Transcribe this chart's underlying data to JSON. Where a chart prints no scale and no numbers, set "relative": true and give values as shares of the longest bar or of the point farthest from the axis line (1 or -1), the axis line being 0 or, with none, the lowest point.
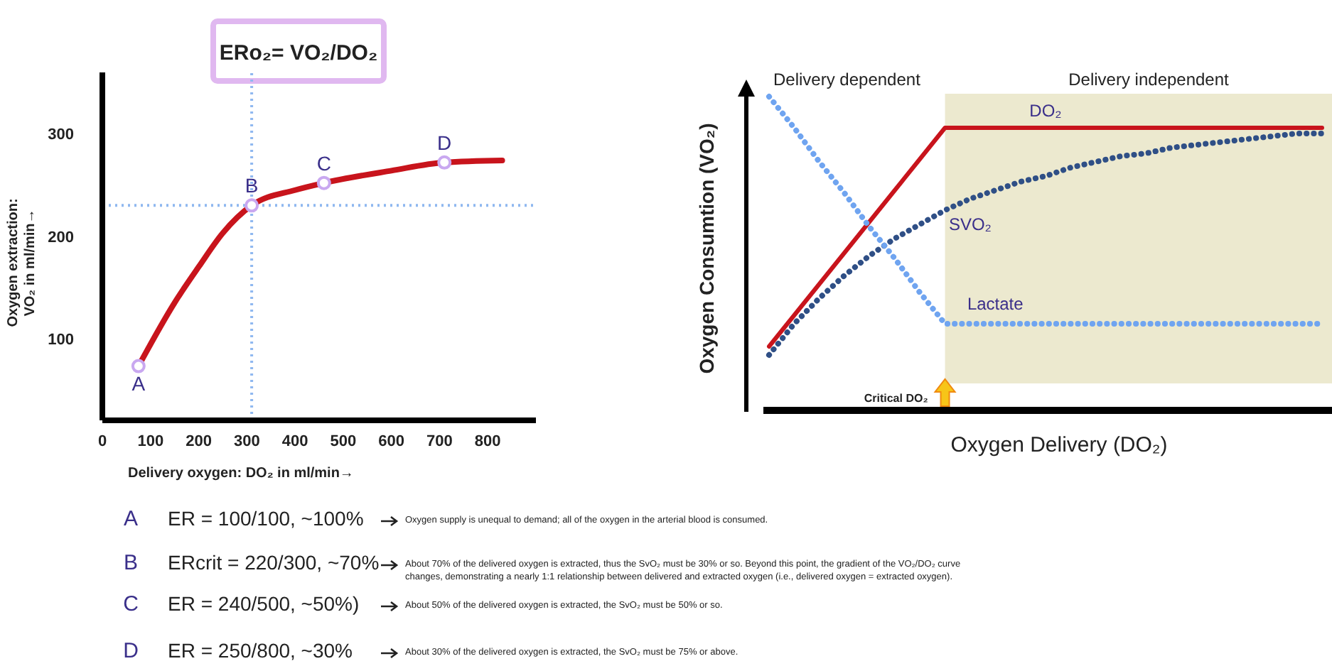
{
  "chart_data": [
    {
      "type": "line",
      "title": "ERo₂= VO₂/DO₂",
      "xlabel": "Delivery oxygen: DO₂ in ml/min→",
      "ylabel": "Oxygen extraction: VO₂ in ml/min→",
      "xlim": [
        0,
        900
      ],
      "ylim": [
        20,
        360
      ],
      "xticks": [
        0,
        100,
        200,
        300,
        400,
        500,
        600,
        700,
        800
      ],
      "yticks": [
        100,
        200,
        300
      ],
      "grid": false,
      "series": [
        {
          "color": "#c8141c",
          "x": [
            75,
            150,
            200,
            250,
            310,
            400,
            460,
            600,
            710,
            830
          ],
          "values": [
            73,
            135,
            170,
            203,
            230,
            245,
            252,
            264,
            272,
            274
          ]
        },
        {
          "type": "scatter",
          "color": "#c9a8f0",
          "marker": "circle",
          "x": [
            75,
            310,
            460,
            710
          ],
          "values": [
            73,
            230,
            252,
            272
          ]
        }
      ],
      "ref_lines": [
        {
          "axis": "x",
          "value": 310,
          "color": "#8fb8f0",
          "line_style": "dotted"
        },
        {
          "axis": "y",
          "value": 230,
          "color": "#8fb8f0",
          "line_style": "dotted"
        }
      ],
      "annotations": [
        {
          "text": "A",
          "x": 75,
          "y": 73
        },
        {
          "text": "B",
          "x": 310,
          "y": 230
        },
        {
          "text": "C",
          "x": 460,
          "y": 252
        },
        {
          "text": "D",
          "x": 710,
          "y": 272
        }
      ]
    },
    {
      "type": "line",
      "relative": true,
      "xlabel": "Oxygen Delivery (DO₂)",
      "ylabel": "Oxygen Consumtion (VO₂)",
      "categories": [
        null,
        null,
        null,
        null,
        null,
        null,
        null,
        null,
        null,
        null,
        null,
        null,
        null,
        null,
        null,
        null,
        null,
        null,
        null,
        null,
        null,
        null,
        null
      ],
      "series": [
        {
          "name": "DO₂",
          "color": "#c8141c",
          "line_style": "solid",
          "values": [
            0.12,
            0.23,
            0.34,
            0.45,
            0.56,
            0.67,
            0.78,
            0.89,
            0.89,
            0.89,
            0.89,
            0.89,
            0.89,
            0.89,
            0.89,
            0.89,
            0.89,
            0.89,
            0.89,
            0.89,
            0.89,
            0.89,
            0.89
          ]
        },
        {
          "name": "SVO₂",
          "color": "#2f4f86",
          "line_style": "dotted",
          "values": [
            0.09,
            0.2,
            0.29,
            0.37,
            0.44,
            0.5,
            0.55,
            0.6,
            0.64,
            0.67,
            0.7,
            0.72,
            0.75,
            0.77,
            0.79,
            0.8,
            0.82,
            0.83,
            0.84,
            0.85,
            0.86,
            0.87,
            0.87
          ]
        },
        {
          "name": "Lactate",
          "color": "#6fa4f0",
          "line_style": "dotted",
          "values": [
            1.0,
            0.89,
            0.77,
            0.66,
            0.54,
            0.43,
            0.31,
            0.2,
            0.2,
            0.2,
            0.2,
            0.2,
            0.2,
            0.2,
            0.2,
            0.2,
            0.2,
            0.2,
            0.2,
            0.2,
            0.2,
            0.2,
            0.2
          ]
        }
      ],
      "annotations": [
        "Delivery dependent",
        "Delivery independent",
        "Critical DO₂"
      ]
    },
    {
      "type": "other",
      "annotations": [
        "A",
        "ER = 100/100, ~100%",
        "Oxygen supply is unequal to demand; all of the oxygen in the arterial blood is consumed.",
        "B",
        "ERcrit = 220/300, ~70%",
        "About 70% of the delivered oxygen is extracted, thus the SvO₂ must be 30% or so. Beyond this point, the gradient of the VO₂/DO₂ curve changes, demonstrating a nearly 1:1 relationship between delivered and extracted oxygen (i.e., delivered oxygen = extracted oxygen).",
        "C",
        "ER = 240/500, ~50%)",
        "About 50% of the delivered oxygen is extracted, the SvO₂ must be 50% or so.",
        "D",
        "ER = 250/800, ~30%",
        "About 30% of the delivered oxygen is extracted, the SvO₂ must be 75% or above."
      ]
    }
  ]
}
